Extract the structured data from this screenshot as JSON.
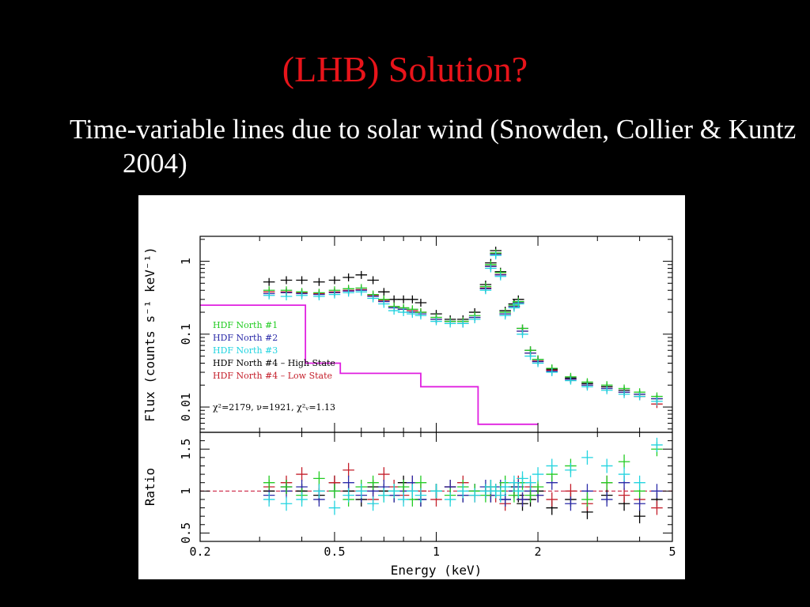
{
  "slide": {
    "title": "(LHB) Solution?",
    "bullet": "Time-variable lines due to solar wind (Snowden, Collier & Kuntz 2004)"
  },
  "chart_data": {
    "type": "scatter",
    "xlabel": "Energy (keV)",
    "xscale": "log",
    "xlim": [
      0.2,
      5
    ],
    "xticks": [
      0.2,
      0.5,
      1,
      2,
      5
    ],
    "xtick_labels": [
      "0.2",
      "0.5",
      "1",
      "2",
      "5"
    ],
    "panels": [
      {
        "name": "flux",
        "ylabel": "Flux (counts s⁻¹ keV⁻¹)",
        "yscale": "log",
        "ylim": [
          0.0045,
          2.2
        ],
        "yticks": [
          0.01,
          0.1,
          1
        ],
        "ytick_labels": [
          "0.01",
          "0.1",
          "1"
        ]
      },
      {
        "name": "ratio",
        "ylabel": "Ratio",
        "yscale": "linear",
        "ylim": [
          0.4,
          1.7
        ],
        "yticks": [
          0.5,
          1,
          1.5
        ],
        "ytick_labels": [
          "0.5",
          "1",
          "1.5"
        ]
      }
    ],
    "legend": {
      "position": "lower-left",
      "entries": [
        {
          "label": "HDF North #1",
          "color": "#22cc22"
        },
        {
          "label": "HDF North #2",
          "color": "#2a2aa8"
        },
        {
          "label": "HDF North #3",
          "color": "#22d4e0"
        },
        {
          "label": "HDF North #4 – High State",
          "color": "#000000"
        },
        {
          "label": "HDF North #4 – Low State",
          "color": "#c41e2a"
        }
      ]
    },
    "annotation": "χ²=2179, ν=1921, χ²ᵥ=1.13",
    "series": [
      {
        "name": "HDF North #1",
        "color": "#22cc22",
        "x": [
          0.32,
          0.36,
          0.4,
          0.45,
          0.5,
          0.55,
          0.6,
          0.65,
          0.7,
          0.75,
          0.8,
          0.85,
          0.9,
          1.0,
          1.1,
          1.2,
          1.3,
          1.4,
          1.45,
          1.5,
          1.55,
          1.6,
          1.7,
          1.75,
          1.8,
          1.9,
          2.0,
          2.2,
          2.5,
          2.8,
          3.2,
          3.6,
          4.0,
          4.5
        ],
        "y": [
          0.4,
          0.4,
          0.38,
          0.37,
          0.4,
          0.42,
          0.43,
          0.35,
          0.3,
          0.24,
          0.23,
          0.22,
          0.2,
          0.17,
          0.15,
          0.15,
          0.18,
          0.45,
          0.9,
          1.3,
          0.7,
          0.2,
          0.25,
          0.28,
          0.12,
          0.06,
          0.045,
          0.034,
          0.026,
          0.022,
          0.02,
          0.018,
          0.016,
          0.014
        ],
        "ratio": [
          1.1,
          1.05,
          0.95,
          1.15,
          1.0,
          0.9,
          1.05,
          1.1,
          0.95,
          1.0,
          1.05,
          0.9,
          1.1,
          1.0,
          0.95,
          1.05,
          1.0,
          0.95,
          1.05,
          1.0,
          1.0,
          1.1,
          0.95,
          1.0,
          1.1,
          0.95,
          1.05,
          1.2,
          1.3,
          0.9,
          1.1,
          1.35,
          1.0,
          1.5
        ]
      },
      {
        "name": "HDF North #2",
        "color": "#2a2aa8",
        "x": [
          0.32,
          0.36,
          0.4,
          0.45,
          0.5,
          0.55,
          0.6,
          0.65,
          0.7,
          0.75,
          0.8,
          0.85,
          0.9,
          1.0,
          1.1,
          1.2,
          1.3,
          1.4,
          1.45,
          1.5,
          1.55,
          1.6,
          1.7,
          1.75,
          1.8,
          1.9,
          2.0,
          2.2,
          2.5,
          2.8,
          3.2,
          3.6,
          4.0,
          4.5
        ],
        "y": [
          0.36,
          0.37,
          0.36,
          0.35,
          0.37,
          0.39,
          0.4,
          0.33,
          0.28,
          0.23,
          0.22,
          0.2,
          0.19,
          0.16,
          0.15,
          0.14,
          0.17,
          0.42,
          0.85,
          1.25,
          0.65,
          0.19,
          0.24,
          0.27,
          0.11,
          0.055,
          0.042,
          0.031,
          0.024,
          0.02,
          0.018,
          0.016,
          0.015,
          0.013
        ],
        "ratio": [
          0.95,
          1.0,
          1.05,
          0.9,
          1.0,
          1.1,
          0.95,
          1.0,
          1.05,
          0.95,
          1.0,
          1.1,
          0.9,
          1.0,
          1.05,
          0.95,
          1.0,
          1.05,
          0.95,
          1.0,
          1.05,
          0.9,
          1.0,
          1.05,
          0.9,
          1.0,
          0.95,
          1.1,
          0.85,
          1.0,
          0.9,
          1.1,
          0.85,
          1.0
        ]
      },
      {
        "name": "HDF North #3",
        "color": "#22d4e0",
        "x": [
          0.32,
          0.36,
          0.4,
          0.45,
          0.5,
          0.55,
          0.6,
          0.65,
          0.7,
          0.75,
          0.8,
          0.85,
          0.9,
          1.0,
          1.1,
          1.2,
          1.3,
          1.4,
          1.45,
          1.5,
          1.55,
          1.6,
          1.7,
          1.75,
          1.8,
          1.9,
          2.0,
          2.2,
          2.5,
          2.8,
          3.2,
          3.6,
          4.0,
          4.5
        ],
        "y": [
          0.34,
          0.33,
          0.34,
          0.33,
          0.35,
          0.37,
          0.38,
          0.31,
          0.26,
          0.21,
          0.2,
          0.19,
          0.18,
          0.15,
          0.14,
          0.14,
          0.16,
          0.4,
          0.8,
          1.2,
          0.62,
          0.18,
          0.23,
          0.26,
          0.1,
          0.05,
          0.04,
          0.03,
          0.023,
          0.019,
          0.017,
          0.015,
          0.014,
          0.012
        ],
        "ratio": [
          0.9,
          0.85,
          0.9,
          1.0,
          0.8,
          0.95,
          1.0,
          0.85,
          0.95,
          1.0,
          0.9,
          1.0,
          0.95,
          1.0,
          0.9,
          1.0,
          0.95,
          1.0,
          1.05,
          1.0,
          0.95,
          1.05,
          1.1,
          1.0,
          1.15,
          1.1,
          1.2,
          1.3,
          1.25,
          1.4,
          1.3,
          1.2,
          1.1,
          1.55
        ]
      },
      {
        "name": "HDF North #4 – High State",
        "color": "#000000",
        "x": [
          0.32,
          0.36,
          0.4,
          0.45,
          0.5,
          0.55,
          0.6,
          0.65,
          0.7,
          0.75,
          0.8,
          0.85,
          0.9,
          1.0,
          1.1,
          1.2,
          1.3,
          1.4,
          1.45,
          1.5,
          1.55,
          1.6,
          1.7,
          1.75,
          1.8,
          1.9,
          2.0,
          2.2,
          2.5,
          2.8,
          3.2,
          3.6,
          4.0,
          4.5
        ],
        "y": [
          0.52,
          0.55,
          0.55,
          0.52,
          0.55,
          0.6,
          0.65,
          0.55,
          0.38,
          0.3,
          0.3,
          0.3,
          0.27,
          0.19,
          0.16,
          0.16,
          0.2,
          0.48,
          0.95,
          1.4,
          0.72,
          0.21,
          0.26,
          0.3,
          0.12,
          0.06,
          0.045,
          0.033,
          0.025,
          0.021,
          0.019,
          0.017,
          0.015,
          0.013
        ],
        "ratio": [
          1.0,
          1.05,
          1.0,
          0.95,
          1.1,
          1.0,
          0.9,
          1.05,
          1.0,
          0.95,
          1.1,
          1.0,
          0.9,
          1.0,
          1.05,
          0.95,
          1.0,
          1.0,
          0.95,
          1.0,
          1.0,
          0.9,
          1.05,
          0.95,
          0.85,
          0.9,
          1.0,
          0.8,
          0.9,
          0.75,
          0.95,
          0.85,
          0.7,
          0.9
        ]
      },
      {
        "name": "HDF North #4 – Low State",
        "color": "#c41e2a",
        "x": [
          0.32,
          0.36,
          0.4,
          0.45,
          0.5,
          0.55,
          0.6,
          0.65,
          0.7,
          0.75,
          0.8,
          0.85,
          0.9,
          1.0,
          1.1,
          1.2,
          1.3,
          1.4,
          1.45,
          1.5,
          1.55,
          1.6,
          1.7,
          1.75,
          1.8,
          1.9,
          2.0,
          2.2,
          2.5,
          2.8,
          3.2,
          3.6,
          4.0,
          4.5
        ],
        "y": [
          0.38,
          0.38,
          0.37,
          0.36,
          0.38,
          0.4,
          0.41,
          0.34,
          0.29,
          0.24,
          0.22,
          0.21,
          0.2,
          0.16,
          0.15,
          0.15,
          0.17,
          0.43,
          0.86,
          1.27,
          0.66,
          0.19,
          0.24,
          0.27,
          0.11,
          0.055,
          0.043,
          0.032,
          0.024,
          0.02,
          0.018,
          0.016,
          0.014,
          0.011
        ],
        "ratio": [
          1.05,
          1.1,
          1.2,
          1.0,
          1.1,
          1.25,
          1.0,
          0.9,
          1.2,
          1.05,
          0.95,
          1.1,
          1.0,
          0.9,
          1.05,
          1.1,
          0.95,
          1.0,
          1.05,
          0.95,
          1.0,
          0.85,
          1.0,
          1.1,
          0.9,
          1.05,
          0.95,
          0.9,
          1.0,
          0.85,
          1.1,
          0.95,
          0.9,
          0.8
        ]
      }
    ],
    "model_line": {
      "color": "#e020e0",
      "steps": [
        {
          "x0": 0.2,
          "x1": 0.41,
          "y": 0.25
        },
        {
          "x0": 0.41,
          "x1": 0.52,
          "y": 0.04
        },
        {
          "x0": 0.52,
          "x1": 0.9,
          "y": 0.029
        },
        {
          "x0": 0.9,
          "x1": 1.33,
          "y": 0.019
        },
        {
          "x0": 1.33,
          "x1": 2.0,
          "y": 0.0058
        }
      ]
    }
  }
}
